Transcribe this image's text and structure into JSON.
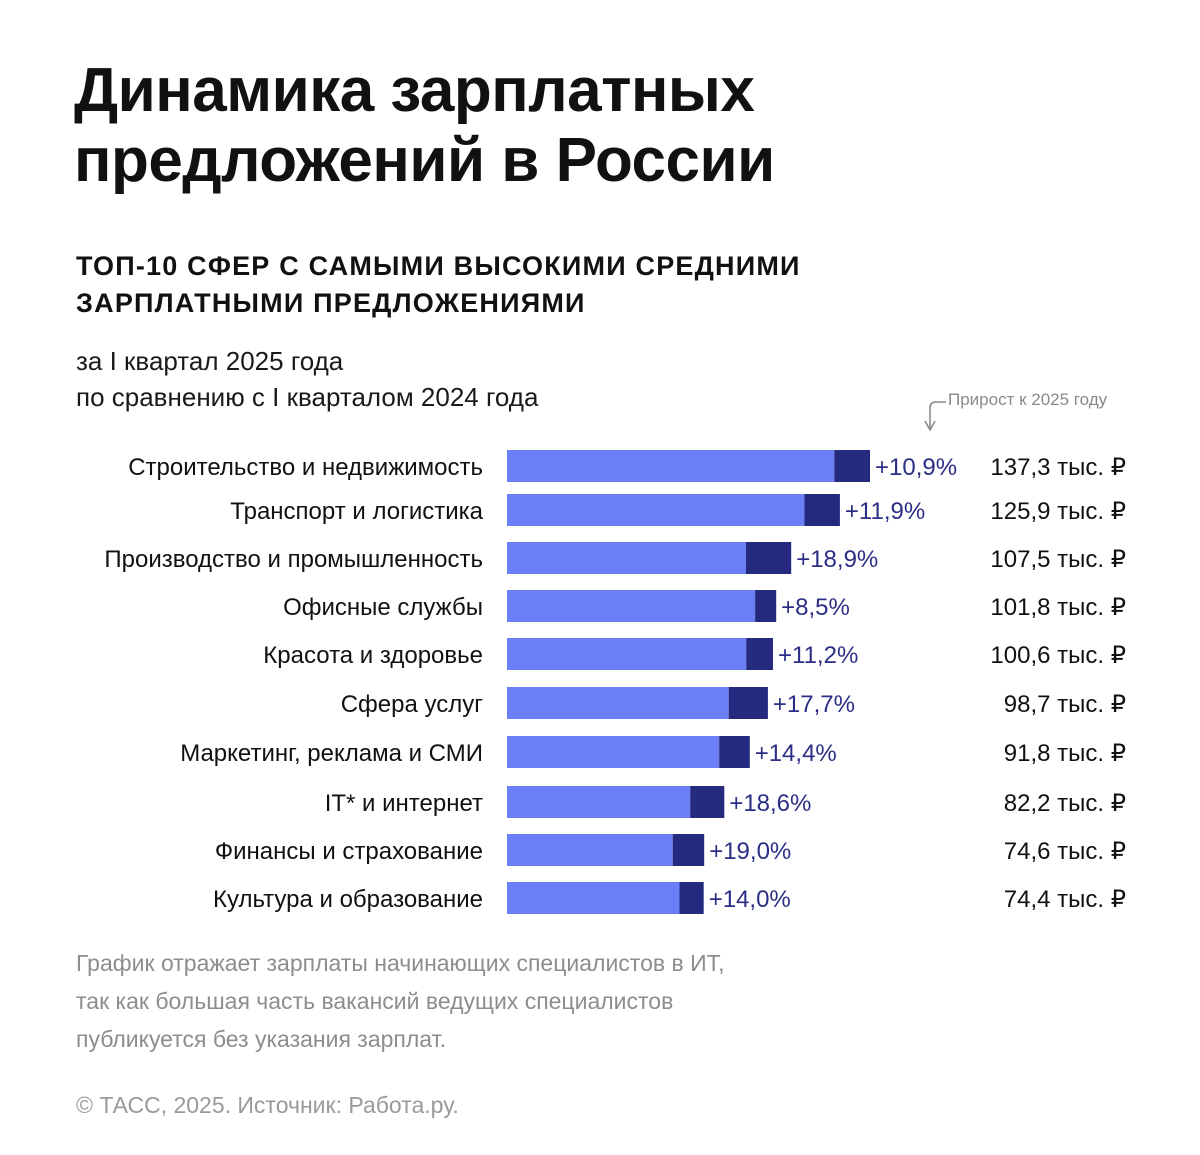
{
  "title_line1": "Динамика зарплатных",
  "title_line2": "предложений в России",
  "subtitle_line1": "ТОП-10 СФЕР С САМЫМИ ВЫСОКИМИ СРЕДНИМИ",
  "subtitle_line2": "ЗАРПЛАТНЫМИ ПРЕДЛОЖЕНИЯМИ",
  "period_line1": "за I квартал 2025 года",
  "period_line2": "по сравнению с I кварталом 2024 года",
  "growth_hint": "Прирост к 2025 году",
  "footnote_line1": "График отражает зарплаты начинающих специалистов в ИТ,",
  "footnote_line2": "так как большая часть вакансий ведущих специалистов",
  "footnote_line3": "публикуется без указания зарплат.",
  "source": "© ТАСС, 2025. Источник: Работа.ру.",
  "colors": {
    "base_bar": "#6a7ff5",
    "growth_bar": "#252a7e",
    "growth_label": "#2a2f85",
    "text": "#111111"
  },
  "chart_data": {
    "type": "bar",
    "orientation": "horizontal",
    "stacked": true,
    "title": "ТОП-10 СФЕР С САМЫМИ ВЫСОКИМИ СРЕДНИМИ ЗАРПЛАТНЫМИ ПРЕДЛОЖЕНИЯМИ",
    "value_unit": "тыс. ₽",
    "categories": [
      "Строительство и недвижимость",
      "Транспорт и логистика",
      "Производство и промышленность",
      "Офисные службы",
      "Красота и здоровье",
      "Сфера услуг",
      "Маркетинг, реклама и СМИ",
      "IT* и интернет",
      "Финансы и страхование",
      "Культура и образование"
    ],
    "values_2025": [
      137.3,
      125.9,
      107.5,
      101.8,
      100.6,
      98.7,
      91.8,
      82.2,
      74.6,
      74.4
    ],
    "growth_pct": [
      10.9,
      11.9,
      18.9,
      8.5,
      11.2,
      17.7,
      14.4,
      18.6,
      19.0,
      14.0
    ],
    "growth_labels": [
      "+10,9%",
      "+11,9%",
      "+18,9%",
      "+8,5%",
      "+11,2%",
      "+17,7%",
      "+14,4%",
      "+18,6%",
      "+19,0%",
      "+14,0%"
    ],
    "value_labels": [
      "137,3 тыс. ₽",
      "125,9 тыс. ₽",
      "107,5 тыс. ₽",
      "101,8 тыс. ₽",
      "100,6 тыс. ₽",
      "98,7 тыс. ₽",
      "91,8 тыс. ₽",
      "82,2 тыс. ₽",
      "74,6 тыс. ₽",
      "74,4 тыс. ₽"
    ],
    "series": [
      {
        "name": "I квартал 2024 года",
        "role": "base"
      },
      {
        "name": "Прирост к 2025 году",
        "role": "growth"
      }
    ],
    "xlim": [
      0,
      137.3
    ]
  }
}
